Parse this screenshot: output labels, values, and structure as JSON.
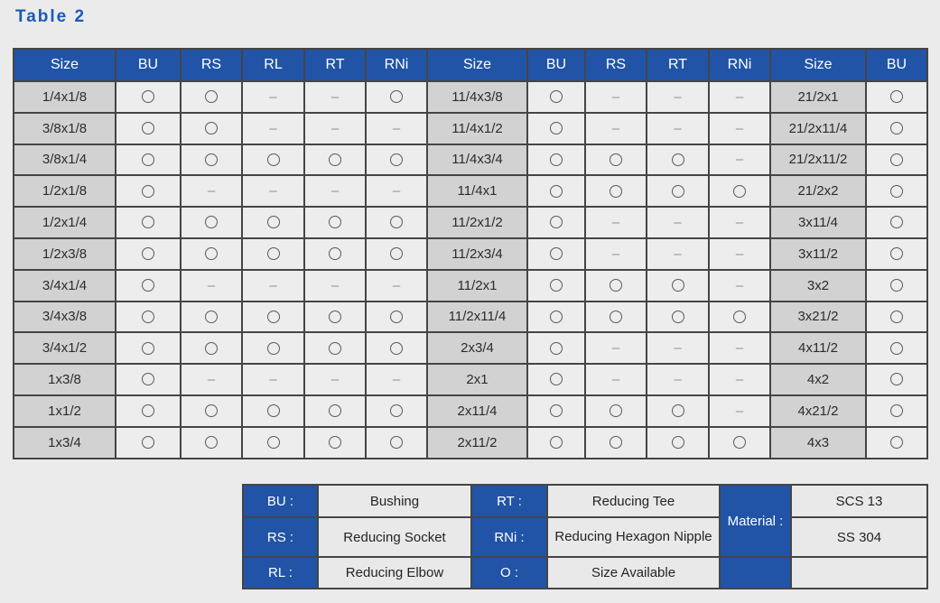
{
  "title": "Table 2",
  "colors": {
    "accent_blue": "#2154a6",
    "title_blue": "#1a5ab5",
    "page_background": "#ebebeb",
    "size_cell_background": "#d2d2d2",
    "data_cell_background": "#ededed",
    "border": "#454545"
  },
  "symbols": {
    "available": "O",
    "unavailable": "–",
    "available_icon": "circle-outline"
  },
  "main_table": {
    "header": [
      "Size",
      "BU",
      "RS",
      "RL",
      "RT",
      "RNi",
      "Size",
      "BU",
      "RS",
      "RT",
      "RNi",
      "Size",
      "BU"
    ],
    "size_column_indexes": [
      0,
      6,
      11
    ],
    "rows": [
      [
        "1/4x1/8",
        "O",
        "O",
        "-",
        "-",
        "O",
        "11/4x3/8",
        "O",
        "-",
        "-",
        "-",
        "21/2x1",
        "O"
      ],
      [
        "3/8x1/8",
        "O",
        "O",
        "-",
        "-",
        "-",
        "11/4x1/2",
        "O",
        "-",
        "-",
        "-",
        "21/2x11/4",
        "O"
      ],
      [
        "3/8x1/4",
        "O",
        "O",
        "O",
        "O",
        "O",
        "11/4x3/4",
        "O",
        "O",
        "O",
        "-",
        "21/2x11/2",
        "O"
      ],
      [
        "1/2x1/8",
        "O",
        "-",
        "-",
        "-",
        "-",
        "11/4x1",
        "O",
        "O",
        "O",
        "O",
        "21/2x2",
        "O"
      ],
      [
        "1/2x1/4",
        "O",
        "O",
        "O",
        "O",
        "O",
        "11/2x1/2",
        "O",
        "-",
        "-",
        "-",
        "3x11/4",
        "O"
      ],
      [
        "1/2x3/8",
        "O",
        "O",
        "O",
        "O",
        "O",
        "11/2x3/4",
        "O",
        "-",
        "-",
        "-",
        "3x11/2",
        "O"
      ],
      [
        "3/4x1/4",
        "O",
        "-",
        "-",
        "-",
        "-",
        "11/2x1",
        "O",
        "O",
        "O",
        "-",
        "3x2",
        "O"
      ],
      [
        "3/4x3/8",
        "O",
        "O",
        "O",
        "O",
        "O",
        "11/2x11/4",
        "O",
        "O",
        "O",
        "O",
        "3x21/2",
        "O"
      ],
      [
        "3/4x1/2",
        "O",
        "O",
        "O",
        "O",
        "O",
        "2x3/4",
        "O",
        "-",
        "-",
        "-",
        "4x11/2",
        "O"
      ],
      [
        "1x3/8",
        "O",
        "-",
        "-",
        "-",
        "-",
        "2x1",
        "O",
        "-",
        "-",
        "-",
        "4x2",
        "O"
      ],
      [
        "1x1/2",
        "O",
        "O",
        "O",
        "O",
        "O",
        "2x11/4",
        "O",
        "O",
        "O",
        "-",
        "4x21/2",
        "O"
      ],
      [
        "1x3/4",
        "O",
        "O",
        "O",
        "O",
        "O",
        "2x11/2",
        "O",
        "O",
        "O",
        "O",
        "4x3",
        "O"
      ]
    ]
  },
  "legend": {
    "entries": [
      {
        "key": "BU :",
        "desc": "Bushing"
      },
      {
        "key": "RS :",
        "desc": "Reducing Socket"
      },
      {
        "key": "RL :",
        "desc": "Reducing Elbow"
      },
      {
        "key": "RT :",
        "desc": "Reducing Tee"
      },
      {
        "key": "RNi :",
        "desc": "Reducing Hexagon Nipple"
      },
      {
        "key": "O :",
        "desc": "Size Available"
      }
    ],
    "material_label": "Material :",
    "materials": [
      "SCS 13",
      "SS 304"
    ]
  }
}
